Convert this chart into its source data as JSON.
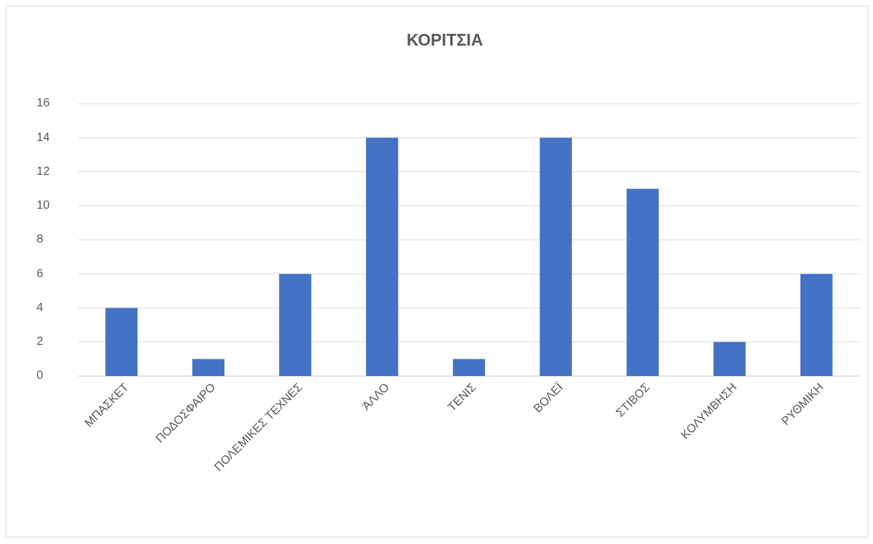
{
  "chart_data": {
    "type": "bar",
    "title": "ΚΟΡΙΤΣΙΑ",
    "categories": [
      "ΜΠΑΣΚΕΤ",
      "ΠΟΔΟΣΦΑΙΡΟ",
      "ΠΟΛΕΜΙΚΕΣ ΤΕΧΝΕΣ",
      "ΆΛΛΟ",
      "ΤΕΝΙΣ",
      "ΒΟΛΕΪ",
      "ΣΤΙΒΟΣ",
      "ΚΟΛΥΜΒΗΣΗ",
      "ΡΥΘΜΙΚΗ"
    ],
    "values": [
      4,
      1,
      6,
      14,
      1,
      14,
      11,
      2,
      6
    ],
    "color": "#4472c4",
    "ylim": [
      0,
      16
    ],
    "yticks": [
      0,
      2,
      4,
      6,
      8,
      10,
      12,
      14,
      16
    ],
    "grid": "y"
  }
}
